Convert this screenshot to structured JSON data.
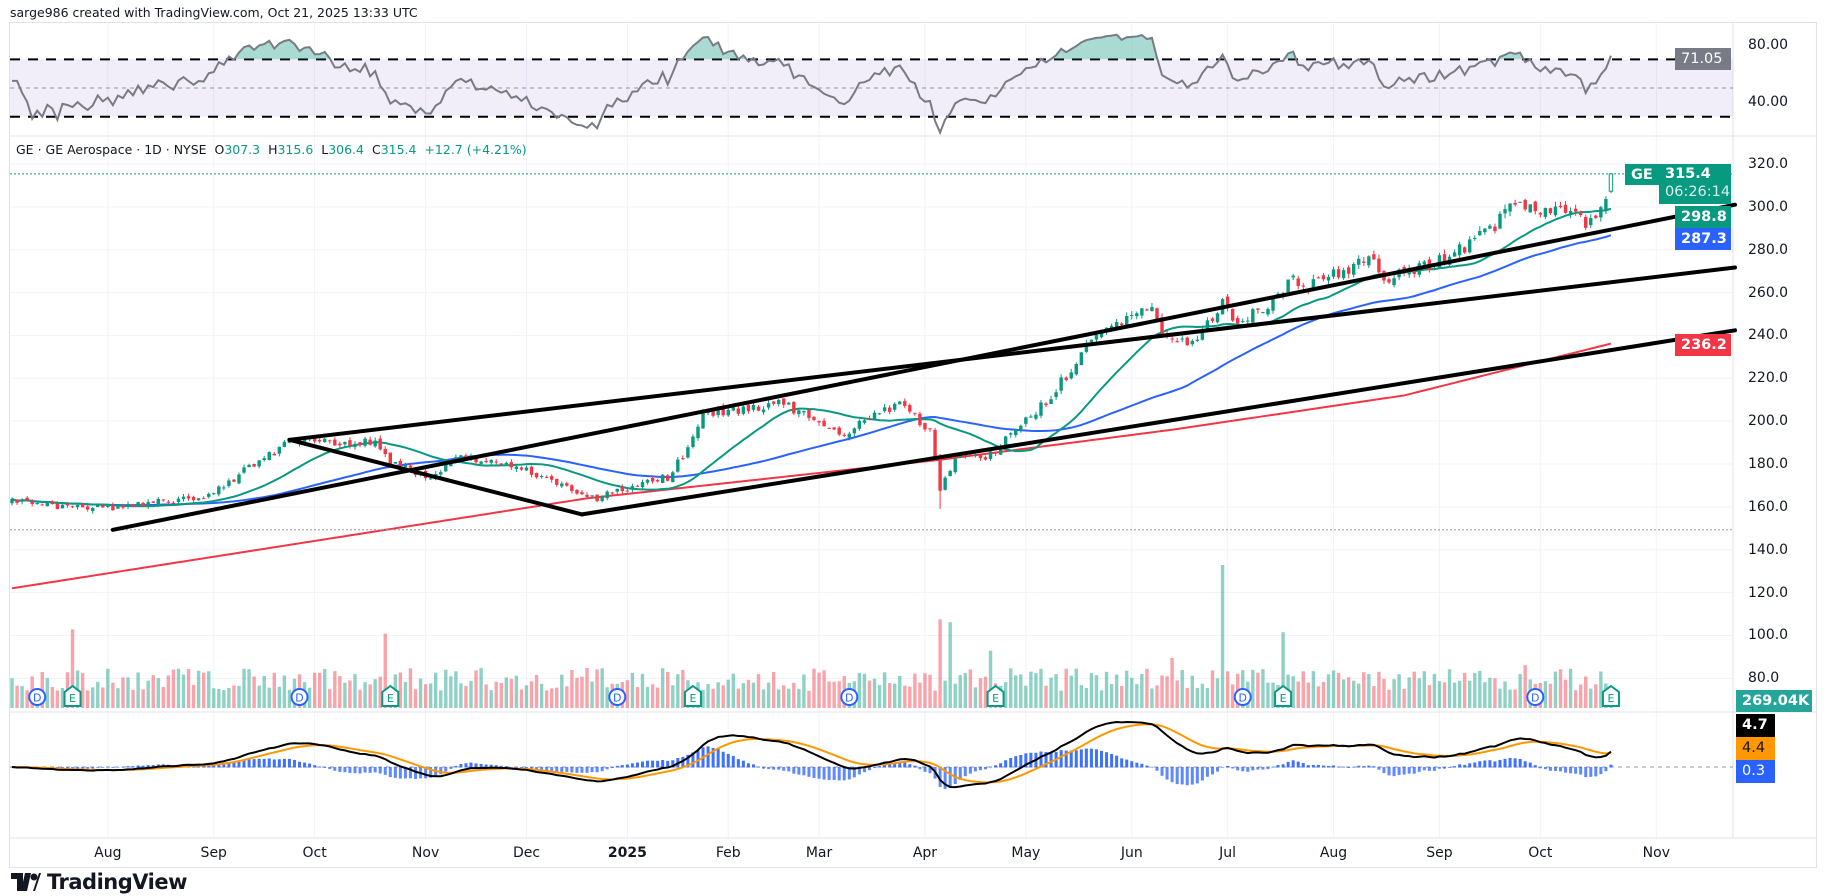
{
  "header": {
    "credit": "sarge986 created with TradingView.com, Oct 21, 2025 13:33 UTC"
  },
  "legend": {
    "symbol": "GE",
    "name": "GE Aerospace",
    "interval": "1D",
    "exchange": "NYSE",
    "open_label": "O",
    "open": "307.3",
    "high_label": "H",
    "high": "315.6",
    "low_label": "L",
    "low": "306.4",
    "close_label": "C",
    "close": "315.4",
    "change": "+12.7 (+4.21%)"
  },
  "price_tags": {
    "symbol": "GE",
    "last": "315.4",
    "countdown": "06:26:14",
    "ma20": "298.8",
    "ma50": "287.3",
    "ma200": "236.2",
    "volume": "269.04K",
    "rsi": "71.05",
    "macd": "4.7",
    "signal": "4.4",
    "hist": "0.3"
  },
  "colors": {
    "up": "#089981",
    "down": "#f23645",
    "ma20": "#089981",
    "ma50": "#2962ff",
    "ma200": "#f23645",
    "rsi": "#787b86",
    "macd": "#000000",
    "signal": "#ff9800",
    "hist": "#2962ff",
    "trend": "#000000"
  },
  "logo": {
    "text": "TradingView"
  },
  "chart_data": {
    "type": "candlestick",
    "title": "GE · GE Aerospace · 1D · NYSE",
    "price_ticks": [
      "320.0",
      "300.0",
      "280.0",
      "260.0",
      "240.0",
      "220.0",
      "200.0",
      "180.0",
      "160.0",
      "140.0",
      "120.0",
      "100.0",
      "80.0"
    ],
    "rsi_ticks": [
      "80.00",
      "40.00"
    ],
    "time_labels": [
      {
        "label": "Aug",
        "bar": 19
      },
      {
        "label": "Sep",
        "bar": 40
      },
      {
        "label": "Oct",
        "bar": 60
      },
      {
        "label": "Nov",
        "bar": 82
      },
      {
        "label": "Dec",
        "bar": 102
      },
      {
        "label": "2025",
        "bar": 122,
        "bold": true
      },
      {
        "label": "Feb",
        "bar": 142
      },
      {
        "label": "Mar",
        "bar": 160
      },
      {
        "label": "Apr",
        "bar": 181
      },
      {
        "label": "May",
        "bar": 201
      },
      {
        "label": "Jun",
        "bar": 222
      },
      {
        "label": "Jul",
        "bar": 241
      },
      {
        "label": "Aug",
        "bar": 262
      },
      {
        "label": "Sep",
        "bar": 283
      },
      {
        "label": "Oct",
        "bar": 303
      },
      {
        "label": "Nov",
        "bar": 326
      }
    ],
    "ylim": [
      80,
      320
    ],
    "close_anchors": [
      [
        0,
        162
      ],
      [
        21,
        159
      ],
      [
        40,
        166
      ],
      [
        49,
        182
      ],
      [
        56,
        191
      ],
      [
        72,
        190
      ],
      [
        76,
        179
      ],
      [
        84,
        174
      ],
      [
        89,
        184
      ],
      [
        100,
        179
      ],
      [
        106,
        174
      ],
      [
        114,
        163
      ],
      [
        121,
        168
      ],
      [
        130,
        174
      ],
      [
        134,
        187
      ],
      [
        137,
        204
      ],
      [
        146,
        206
      ],
      [
        153,
        209
      ],
      [
        158,
        201
      ],
      [
        164,
        193
      ],
      [
        176,
        209
      ],
      [
        182,
        196
      ],
      [
        184,
        168
      ],
      [
        188,
        185
      ],
      [
        193,
        182
      ],
      [
        199,
        196
      ],
      [
        206,
        212
      ],
      [
        213,
        234
      ],
      [
        220,
        247
      ],
      [
        226,
        254
      ],
      [
        228,
        239
      ],
      [
        234,
        236
      ],
      [
        240,
        255
      ],
      [
        243,
        247
      ],
      [
        250,
        255
      ],
      [
        253,
        266
      ],
      [
        257,
        263
      ],
      [
        264,
        270
      ],
      [
        270,
        276
      ],
      [
        272,
        266
      ],
      [
        280,
        272
      ],
      [
        287,
        280
      ],
      [
        294,
        291
      ],
      [
        298,
        303
      ],
      [
        303,
        298
      ],
      [
        310,
        299
      ],
      [
        312,
        293
      ],
      [
        316,
        302
      ]
    ],
    "last_bar": {
      "bar": 317,
      "open": 307.3,
      "high": 315.6,
      "low": 306.4,
      "close": 315.4
    },
    "ma200_anchors": [
      [
        0,
        122
      ],
      [
        114,
        164
      ],
      [
        184,
        182
      ],
      [
        230,
        196
      ],
      [
        276,
        212
      ],
      [
        317,
        236.2
      ]
    ],
    "trendlines": [
      {
        "from": [
          20,
          149.3
        ],
        "to": [
          341.6,
          301
        ]
      },
      {
        "from": [
          55,
          191.3
        ],
        "to": [
          341.6,
          271.7
        ]
      },
      {
        "from": [
          55,
          191.3
        ],
        "to": [
          113,
          156.5
        ]
      },
      {
        "from": [
          113,
          156.5
        ],
        "to": [
          341.6,
          242.4
        ]
      }
    ],
    "horizontal_lines": [
      149.3
    ],
    "volume_spikes": [
      [
        12,
        0.55
      ],
      [
        74,
        0.52
      ],
      [
        184,
        0.62
      ],
      [
        186,
        0.6
      ],
      [
        194,
        0.4
      ],
      [
        240,
        1.0
      ],
      [
        252,
        0.53
      ],
      [
        230,
        0.35
      ],
      [
        93,
        0.28
      ],
      [
        300,
        0.3
      ]
    ],
    "dividends": [
      5,
      57,
      120,
      166,
      244,
      302
    ],
    "earnings": [
      12,
      75,
      135,
      195,
      252,
      317
    ],
    "rsi_bands": [
      70,
      50,
      30
    ],
    "indicators": [
      "SMA 20",
      "SMA 50",
      "SMA 200",
      "Volume",
      "RSI 14",
      "MACD 12 26 9"
    ]
  }
}
